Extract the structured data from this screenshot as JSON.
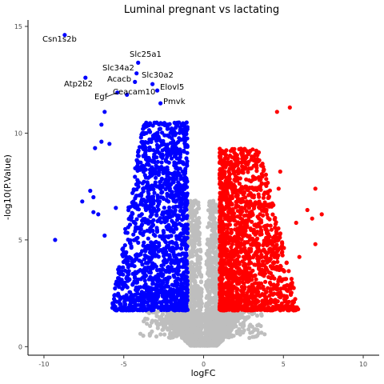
{
  "chart_data": {
    "type": "scatter",
    "title": "Luminal pregnant vs lactating",
    "xlabel": "logFC",
    "ylabel": "-log10(P.Value)",
    "xlim": [
      -11,
      11
    ],
    "ylim": [
      -0.4,
      15.3
    ],
    "x_ticks": [
      -10,
      -5,
      0,
      5,
      10
    ],
    "x_tick_labels": [
      "-10",
      "-5",
      "0",
      "5",
      "10"
    ],
    "y_ticks": [
      0,
      5,
      10,
      15
    ],
    "y_tick_labels": [
      "0",
      "5",
      "10",
      "15"
    ],
    "grid": false,
    "legend": "none",
    "colors": {
      "down": "#0000ff",
      "up": "#ff0000",
      "ns": "#bebebe"
    },
    "labeled_genes": [
      {
        "name": "Csn1s2b",
        "x": -8.7,
        "y": 14.6
      },
      {
        "name": "Slc25a1",
        "x": -4.1,
        "y": 13.3
      },
      {
        "name": "Slc34a2",
        "x": -4.2,
        "y": 12.8
      },
      {
        "name": "Slc30a2",
        "x": -3.2,
        "y": 12.3
      },
      {
        "name": "Acacb",
        "x": -4.3,
        "y": 12.4
      },
      {
        "name": "Atp2b2",
        "x": -7.4,
        "y": 12.6
      },
      {
        "name": "Elovl5",
        "x": -2.9,
        "y": 12.0
      },
      {
        "name": "Egf",
        "x": -5.4,
        "y": 11.9
      },
      {
        "name": "Ceacam10",
        "x": -4.8,
        "y": 11.8
      },
      {
        "name": "Pmvk",
        "x": -2.7,
        "y": 11.4
      }
    ],
    "up_highlights": [
      {
        "x": 5.4,
        "y": 11.2
      },
      {
        "x": 4.6,
        "y": 11.0
      },
      {
        "x": 7.0,
        "y": 7.4
      },
      {
        "x": 7.4,
        "y": 6.2
      },
      {
        "x": 6.5,
        "y": 6.4
      },
      {
        "x": 7.0,
        "y": 4.8
      },
      {
        "x": 6.8,
        "y": 6.0
      },
      {
        "x": 4.8,
        "y": 8.2
      },
      {
        "x": 4.7,
        "y": 7.4
      },
      {
        "x": 5.8,
        "y": 5.8
      },
      {
        "x": 6.0,
        "y": 4.2
      }
    ],
    "down_highlights": [
      {
        "x": -9.3,
        "y": 5.0
      },
      {
        "x": -7.6,
        "y": 6.8
      },
      {
        "x": -7.1,
        "y": 7.3
      },
      {
        "x": -6.8,
        "y": 9.3
      },
      {
        "x": -6.4,
        "y": 9.6
      },
      {
        "x": -6.2,
        "y": 11.0
      },
      {
        "x": -6.4,
        "y": 10.4
      },
      {
        "x": -6.9,
        "y": 7.0
      },
      {
        "x": -6.6,
        "y": 6.2
      },
      {
        "x": -6.9,
        "y": 6.3
      },
      {
        "x": -6.2,
        "y": 5.2
      },
      {
        "x": -5.9,
        "y": 9.5
      },
      {
        "x": -5.5,
        "y": 6.5
      }
    ],
    "bulk": {
      "down": {
        "count": 1500,
        "x_range": [
          -7,
          -1
        ],
        "y_range": [
          1.7,
          11.0
        ]
      },
      "up": {
        "count": 1600,
        "x_range": [
          1,
          6.5
        ],
        "y_range": [
          1.7,
          9.3
        ]
      },
      "ns": {
        "count": 3500,
        "x_range": [
          -4,
          4
        ],
        "y_range": [
          0,
          7.0
        ]
      }
    }
  }
}
